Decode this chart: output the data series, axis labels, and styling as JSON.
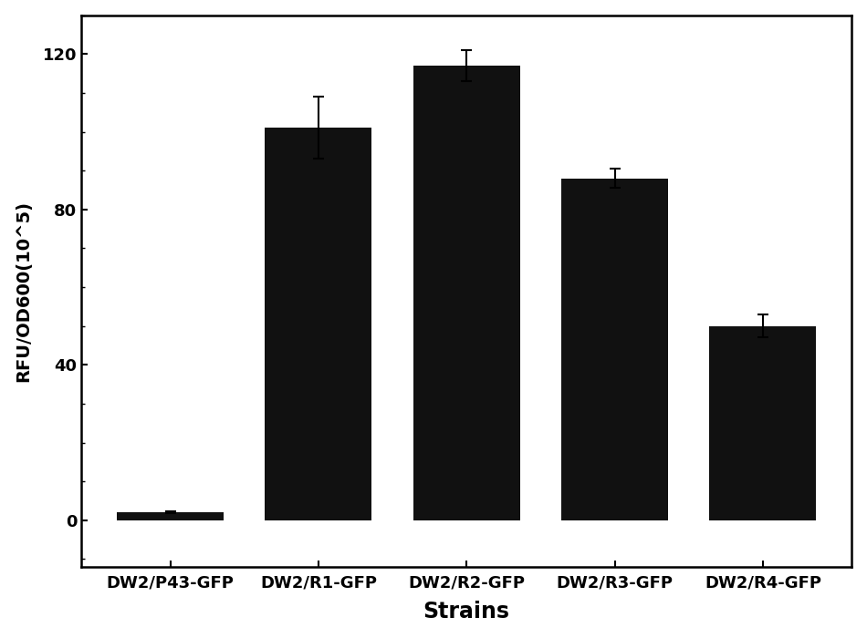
{
  "categories": [
    "DW2/P43-GFP",
    "DW2/R1-GFP",
    "DW2/R2-GFP",
    "DW2/R3-GFP",
    "DW2/R4-GFP"
  ],
  "values": [
    2.0,
    101.0,
    117.0,
    88.0,
    50.0
  ],
  "errors": [
    0.3,
    8.0,
    4.0,
    2.5,
    3.0
  ],
  "bar_color": "#111111",
  "bar_width": 0.72,
  "xlabel": "Strains",
  "ylabel": "RFU/OD600(10^5)",
  "ylim": [
    -12,
    130
  ],
  "yticks": [
    0,
    40,
    80,
    120
  ],
  "title": "",
  "background_color": "#ffffff",
  "axis_linewidth": 1.8,
  "xlabel_fontsize": 17,
  "ylabel_fontsize": 14,
  "tick_fontsize": 13,
  "xlabel_fontweight": "bold",
  "figsize": [
    9.5,
    7.0
  ]
}
